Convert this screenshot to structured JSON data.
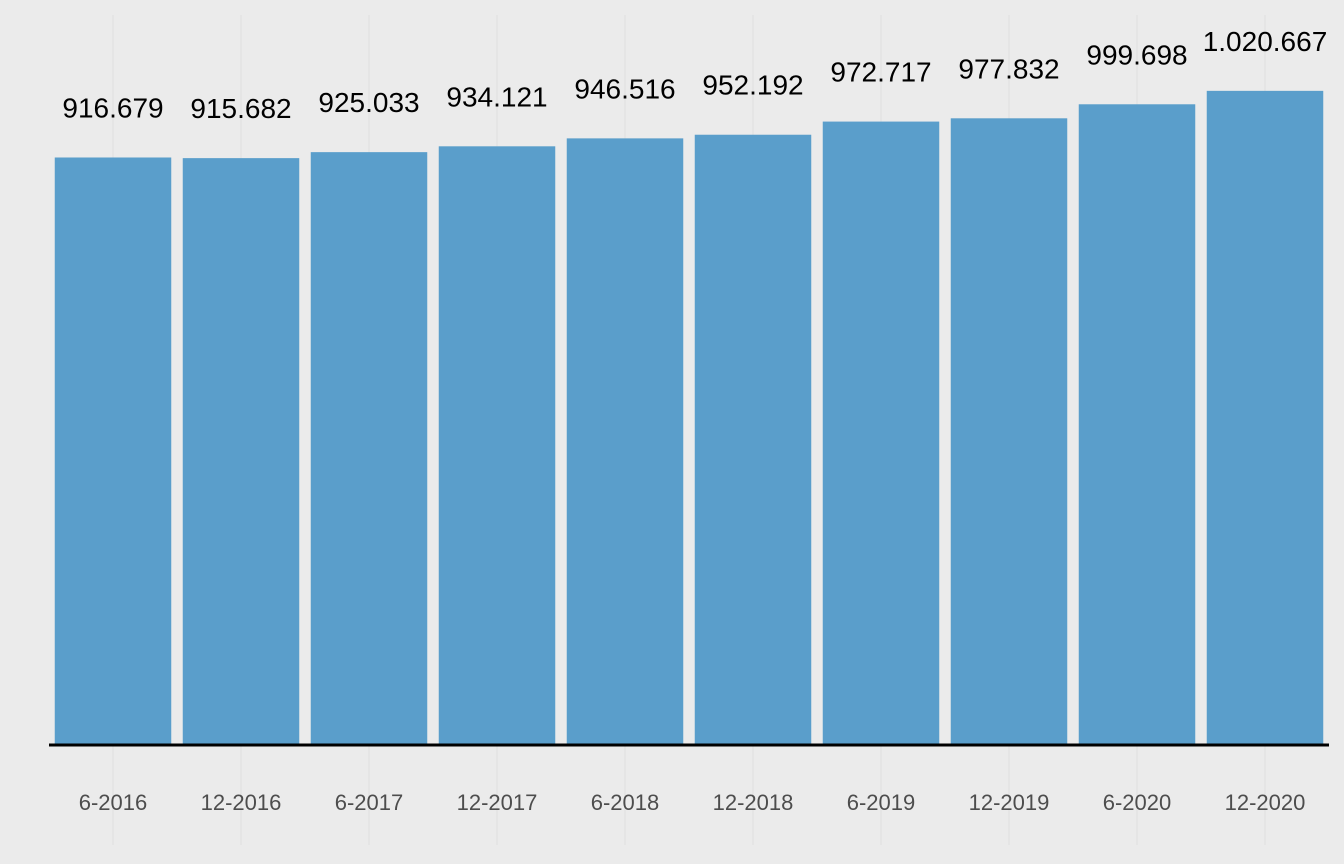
{
  "colors": {
    "panel_background": "#ebebeb",
    "grid": "#e3e3e3",
    "bar_fill": "#5a9ecb",
    "axis_line": "#000000",
    "value_label": "#000000",
    "tick_label": "#4d4d4d"
  },
  "chart_data": {
    "type": "bar",
    "title": "",
    "xlabel": "",
    "ylabel": "",
    "categories": [
      "6-2016",
      "12-2016",
      "6-2017",
      "12-2017",
      "6-2018",
      "12-2018",
      "6-2019",
      "12-2019",
      "6-2020",
      "12-2020"
    ],
    "values": [
      916679,
      915682,
      925033,
      934121,
      946516,
      952192,
      972717,
      977832,
      999698,
      1020667
    ],
    "value_labels": [
      "916.679",
      "915.682",
      "925.033",
      "934.121",
      "946.516",
      "952.192",
      "972.717",
      "977.832",
      "999.698",
      "1.020.667"
    ],
    "ylim": [
      0,
      1100000
    ],
    "grid": true,
    "legend": "none"
  }
}
